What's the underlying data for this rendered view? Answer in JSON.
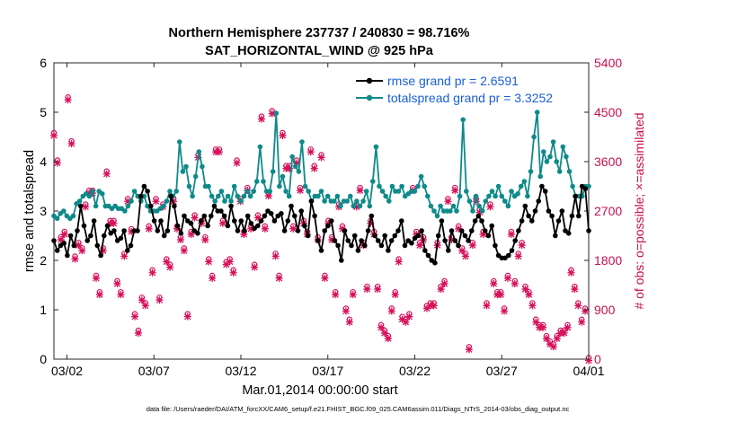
{
  "chart_data": {
    "type": "line",
    "title": "Northern Hemisphere 237737 / 240830 = 98.716%",
    "subtitle": "SAT_HORIZONTAL_WIND @ 925 hPa",
    "xlabel": "Mar.01,2014 00:00:00 start",
    "ylabel": "rmse and totalspread",
    "ylabel_right": "# of obs: o=possible; ×=assimilated",
    "footnote": "data file: /Users/raeder/DAI/ATM_forcXX/CAM6_setup/f.e21.FHIST_BGC.f09_025.CAM6assim.011/Diags_NTrS_2014-03/obs_diag_output.nc",
    "x_ticks": [
      "03/02",
      "03/07",
      "03/12",
      "03/17",
      "03/22",
      "03/27",
      "04/01"
    ],
    "x_tick_days": [
      1,
      6,
      11,
      16,
      21,
      26,
      31
    ],
    "xlim": [
      0.25,
      31
    ],
    "ylim": [
      0,
      6
    ],
    "y_ticks": [
      "0",
      "1",
      "2",
      "3",
      "4",
      "5",
      "6"
    ],
    "ylim_right": [
      0,
      5400
    ],
    "y_ticks_right": [
      "0",
      "900",
      "1800",
      "2700",
      "3600",
      "4500",
      "5400"
    ],
    "grid": false,
    "legend_position": "top-right",
    "colors": {
      "rmse": "#000000",
      "spread": "#0f8a8a",
      "obs": "#d6105a",
      "legend_text": "#1a5fd6"
    },
    "series": [
      {
        "name": "rmse grand pr = 2.6591",
        "values": [
          2.4,
          2.2,
          2.3,
          2.35,
          2.1,
          2.5,
          2.3,
          2.6,
          3.1,
          2.7,
          2.4,
          2.5,
          2.8,
          2.3,
          2.1,
          2.5,
          2.7,
          2.55,
          2.6,
          2.4,
          2.45,
          2.6,
          2.2,
          2.3,
          2.6,
          2.6,
          3.3,
          3.5,
          3.4,
          3.1,
          2.8,
          2.6,
          2.8,
          2.5,
          2.6,
          3.3,
          3.1,
          2.7,
          2.55,
          2.9,
          2.8,
          2.75,
          2.6,
          2.55,
          2.8,
          2.9,
          2.7,
          2.9,
          3.1,
          3.0,
          3.0,
          2.9,
          2.7,
          3.1,
          2.8,
          2.6,
          2.8,
          2.6,
          2.9,
          2.75,
          2.65,
          2.7,
          2.8,
          2.9,
          3.0,
          2.95,
          2.8,
          2.9,
          2.95,
          2.6,
          2.8,
          3.1,
          2.9,
          2.6,
          3.0,
          2.7,
          2.5,
          3.2,
          2.9,
          2.4,
          2.2,
          2.6,
          2.7,
          2.8,
          2.4,
          2.3,
          2.0,
          2.6,
          2.4,
          2.3,
          2.5,
          2.2,
          2.4,
          2.3,
          2.6,
          2.9,
          2.5,
          2.4,
          2.3,
          2.5,
          2.2,
          2.4,
          2.5,
          2.6,
          2.8,
          2.3,
          2.4,
          2.35,
          2.45,
          2.5,
          2.6,
          2.2,
          2.1,
          2.0,
          1.95,
          2.5,
          2.8,
          2.4,
          2.2,
          2.6,
          2.4,
          2.3,
          2.6,
          2.5,
          2.4,
          2.6,
          2.8,
          2.9,
          2.8,
          2.6,
          2.5,
          2.7,
          2.3,
          2.1,
          2.05,
          2.05,
          2.1,
          2.2,
          2.4,
          2.6,
          2.8,
          3.1,
          2.9,
          2.8,
          3.0,
          3.2,
          3.5,
          3.4,
          3.0,
          2.9,
          2.5,
          2.8,
          3.0,
          2.6,
          2.55,
          2.9,
          3.3,
          2.9,
          3.5,
          3.45,
          2.6
        ]
      },
      {
        "name": "totalspread grand pr = 3.3252",
        "values": [
          2.9,
          2.85,
          2.95,
          3.0,
          2.9,
          2.85,
          2.9,
          3.15,
          3.2,
          3.3,
          3.35,
          3.3,
          3.4,
          3.1,
          3.4,
          3.35,
          3.1,
          3.1,
          3.05,
          3.1,
          3.05,
          3.05,
          3.0,
          3.1,
          3.2,
          3.4,
          3.3,
          3.2,
          3.3,
          3.1,
          3.0,
          3.0,
          3.0,
          3.05,
          3.1,
          3.2,
          3.4,
          3.3,
          3.4,
          4.4,
          3.8,
          3.9,
          3.5,
          3.3,
          3.7,
          4.2,
          3.9,
          3.5,
          3.5,
          3.3,
          3.2,
          3.3,
          3.4,
          3.2,
          3.3,
          3.2,
          3.5,
          3.3,
          3.2,
          3.3,
          3.4,
          3.3,
          3.4,
          3.6,
          4.3,
          3.6,
          3.4,
          3.4,
          3.8,
          4.98,
          3.5,
          3.7,
          3.4,
          3.3,
          4.1,
          3.9,
          3.8,
          4.4,
          3.5,
          3.4,
          3.2,
          3.3,
          3.3,
          3.4,
          3.2,
          3.3,
          3.2,
          3.2,
          3.3,
          3.1,
          3.2,
          3.2,
          3.3,
          3.1,
          3.2,
          3.1,
          3.2,
          3.4,
          3.1,
          3.6,
          4.3,
          3.5,
          3.4,
          3.3,
          3.2,
          3.5,
          3.4,
          3.4,
          3.5,
          3.3,
          3.35,
          3.4,
          3.4,
          3.5,
          3.7,
          3.5,
          3.3,
          3.1,
          3.0,
          2.9,
          3.1,
          3.0,
          3.0,
          3.0,
          3.1,
          3.0,
          3.3,
          4.85,
          3.4,
          3.2,
          3.0,
          3.3,
          3.1,
          3.0,
          3.2,
          3.3,
          3.4,
          3.3,
          3.5,
          3.3,
          3.2,
          3.1,
          3.4,
          3.3,
          3.35,
          3.5,
          3.6,
          3.3,
          3.8,
          4.5,
          5.0,
          3.7,
          4.2,
          4.0,
          4.1,
          4.4,
          4.0,
          3.8,
          4.3,
          4.1,
          3.8,
          3.5,
          3.3,
          3.3,
          3.3,
          3.5,
          3.5
        ]
      },
      {
        "name": "obs",
        "y_axis": "right",
        "values": [
          4100,
          3600,
          2200,
          2300,
          4750,
          3950,
          1850,
          2100,
          2000,
          2800,
          3050,
          3050,
          1500,
          1200,
          2000,
          3400,
          2500,
          2500,
          1400,
          1200,
          1900,
          2900,
          2350,
          800,
          500,
          1100,
          1000,
          2400,
          1600,
          2900,
          1100,
          2800,
          1800,
          1700,
          2900,
          2400,
          2200,
          2000,
          800,
          2300,
          2600,
          3700,
          2500,
          2200,
          1800,
          1500,
          3800,
          3800,
          2500,
          1750,
          1800,
          1600,
          3600,
          2900,
          2300,
          3100,
          2400,
          1700,
          2600,
          4400,
          2400,
          3000,
          4500,
          1900,
          1500,
          4100,
          3500,
          3500,
          2400,
          3600,
          3100,
          2500,
          2300,
          3800,
          3500,
          2200,
          3700,
          1500,
          2500,
          2200,
          1200,
          2800,
          2400,
          900,
          700,
          1200,
          2800,
          3100,
          2100,
          1300,
          2500,
          2300,
          1300,
          600,
          500,
          400,
          900,
          1200,
          1800,
          750,
          700,
          800,
          3100,
          2300,
          2100,
          2200,
          950,
          1000,
          1000,
          2100,
          1300,
          1400,
          2900,
          2200,
          3100,
          2400,
          2000,
          1900,
          200,
          2100,
          2900,
          2700,
          2300,
          1000,
          2800,
          1400,
          1200,
          1200,
          900,
          1500,
          2300,
          1400,
          1900,
          2100,
          1300,
          1200,
          1000,
          700,
          600,
          600,
          400,
          300,
          250,
          400,
          500,
          500,
          600,
          1600,
          1300,
          1000,
          700,
          900,
          0
        ]
      }
    ]
  }
}
